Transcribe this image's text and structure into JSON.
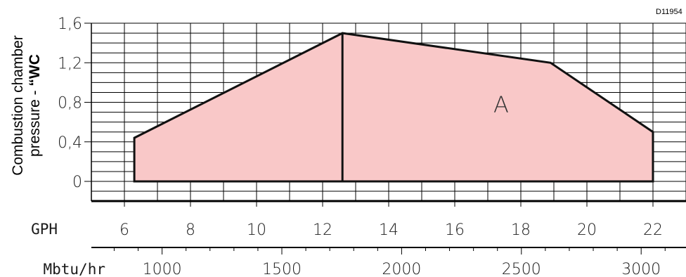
{
  "figure_code": "D11954",
  "chart_data": {
    "type": "area",
    "ylabel_line1": "Combustion chamber",
    "ylabel_line2_prefix": "pressure - ",
    "ylabel_line2_unit": "“WC",
    "ylim": [
      0,
      1.6
    ],
    "y_ticks": [
      "0",
      "0,4",
      "0,8",
      "1,2",
      "1,6"
    ],
    "y_tick_values": [
      0,
      0.4,
      0.8,
      1.2,
      1.6
    ],
    "x_primary": {
      "label": "GPH",
      "range": [
        5,
        23
      ],
      "ticks": [
        "6",
        "8",
        "10",
        "12",
        "14",
        "16",
        "18",
        "20",
        "22"
      ],
      "tick_values": [
        6,
        8,
        10,
        12,
        14,
        16,
        18,
        20,
        22
      ]
    },
    "x_secondary": {
      "label": "Mbtu/hr",
      "ticks": [
        "1000",
        "1500",
        "2000",
        "2500",
        "3000"
      ],
      "tick_values": [
        1000,
        1500,
        2000,
        2500,
        3000
      ]
    },
    "region_label": "A",
    "divider_x": 12.6,
    "series": [
      {
        "x": [
          6.3,
          6.3,
          12.6,
          18.9,
          22.0,
          22.0
        ],
        "y": [
          0,
          0.44,
          1.5,
          1.2,
          0.5,
          0
        ],
        "fill": "#f9c8c8",
        "stroke": "#111111"
      }
    ],
    "grid": true
  }
}
